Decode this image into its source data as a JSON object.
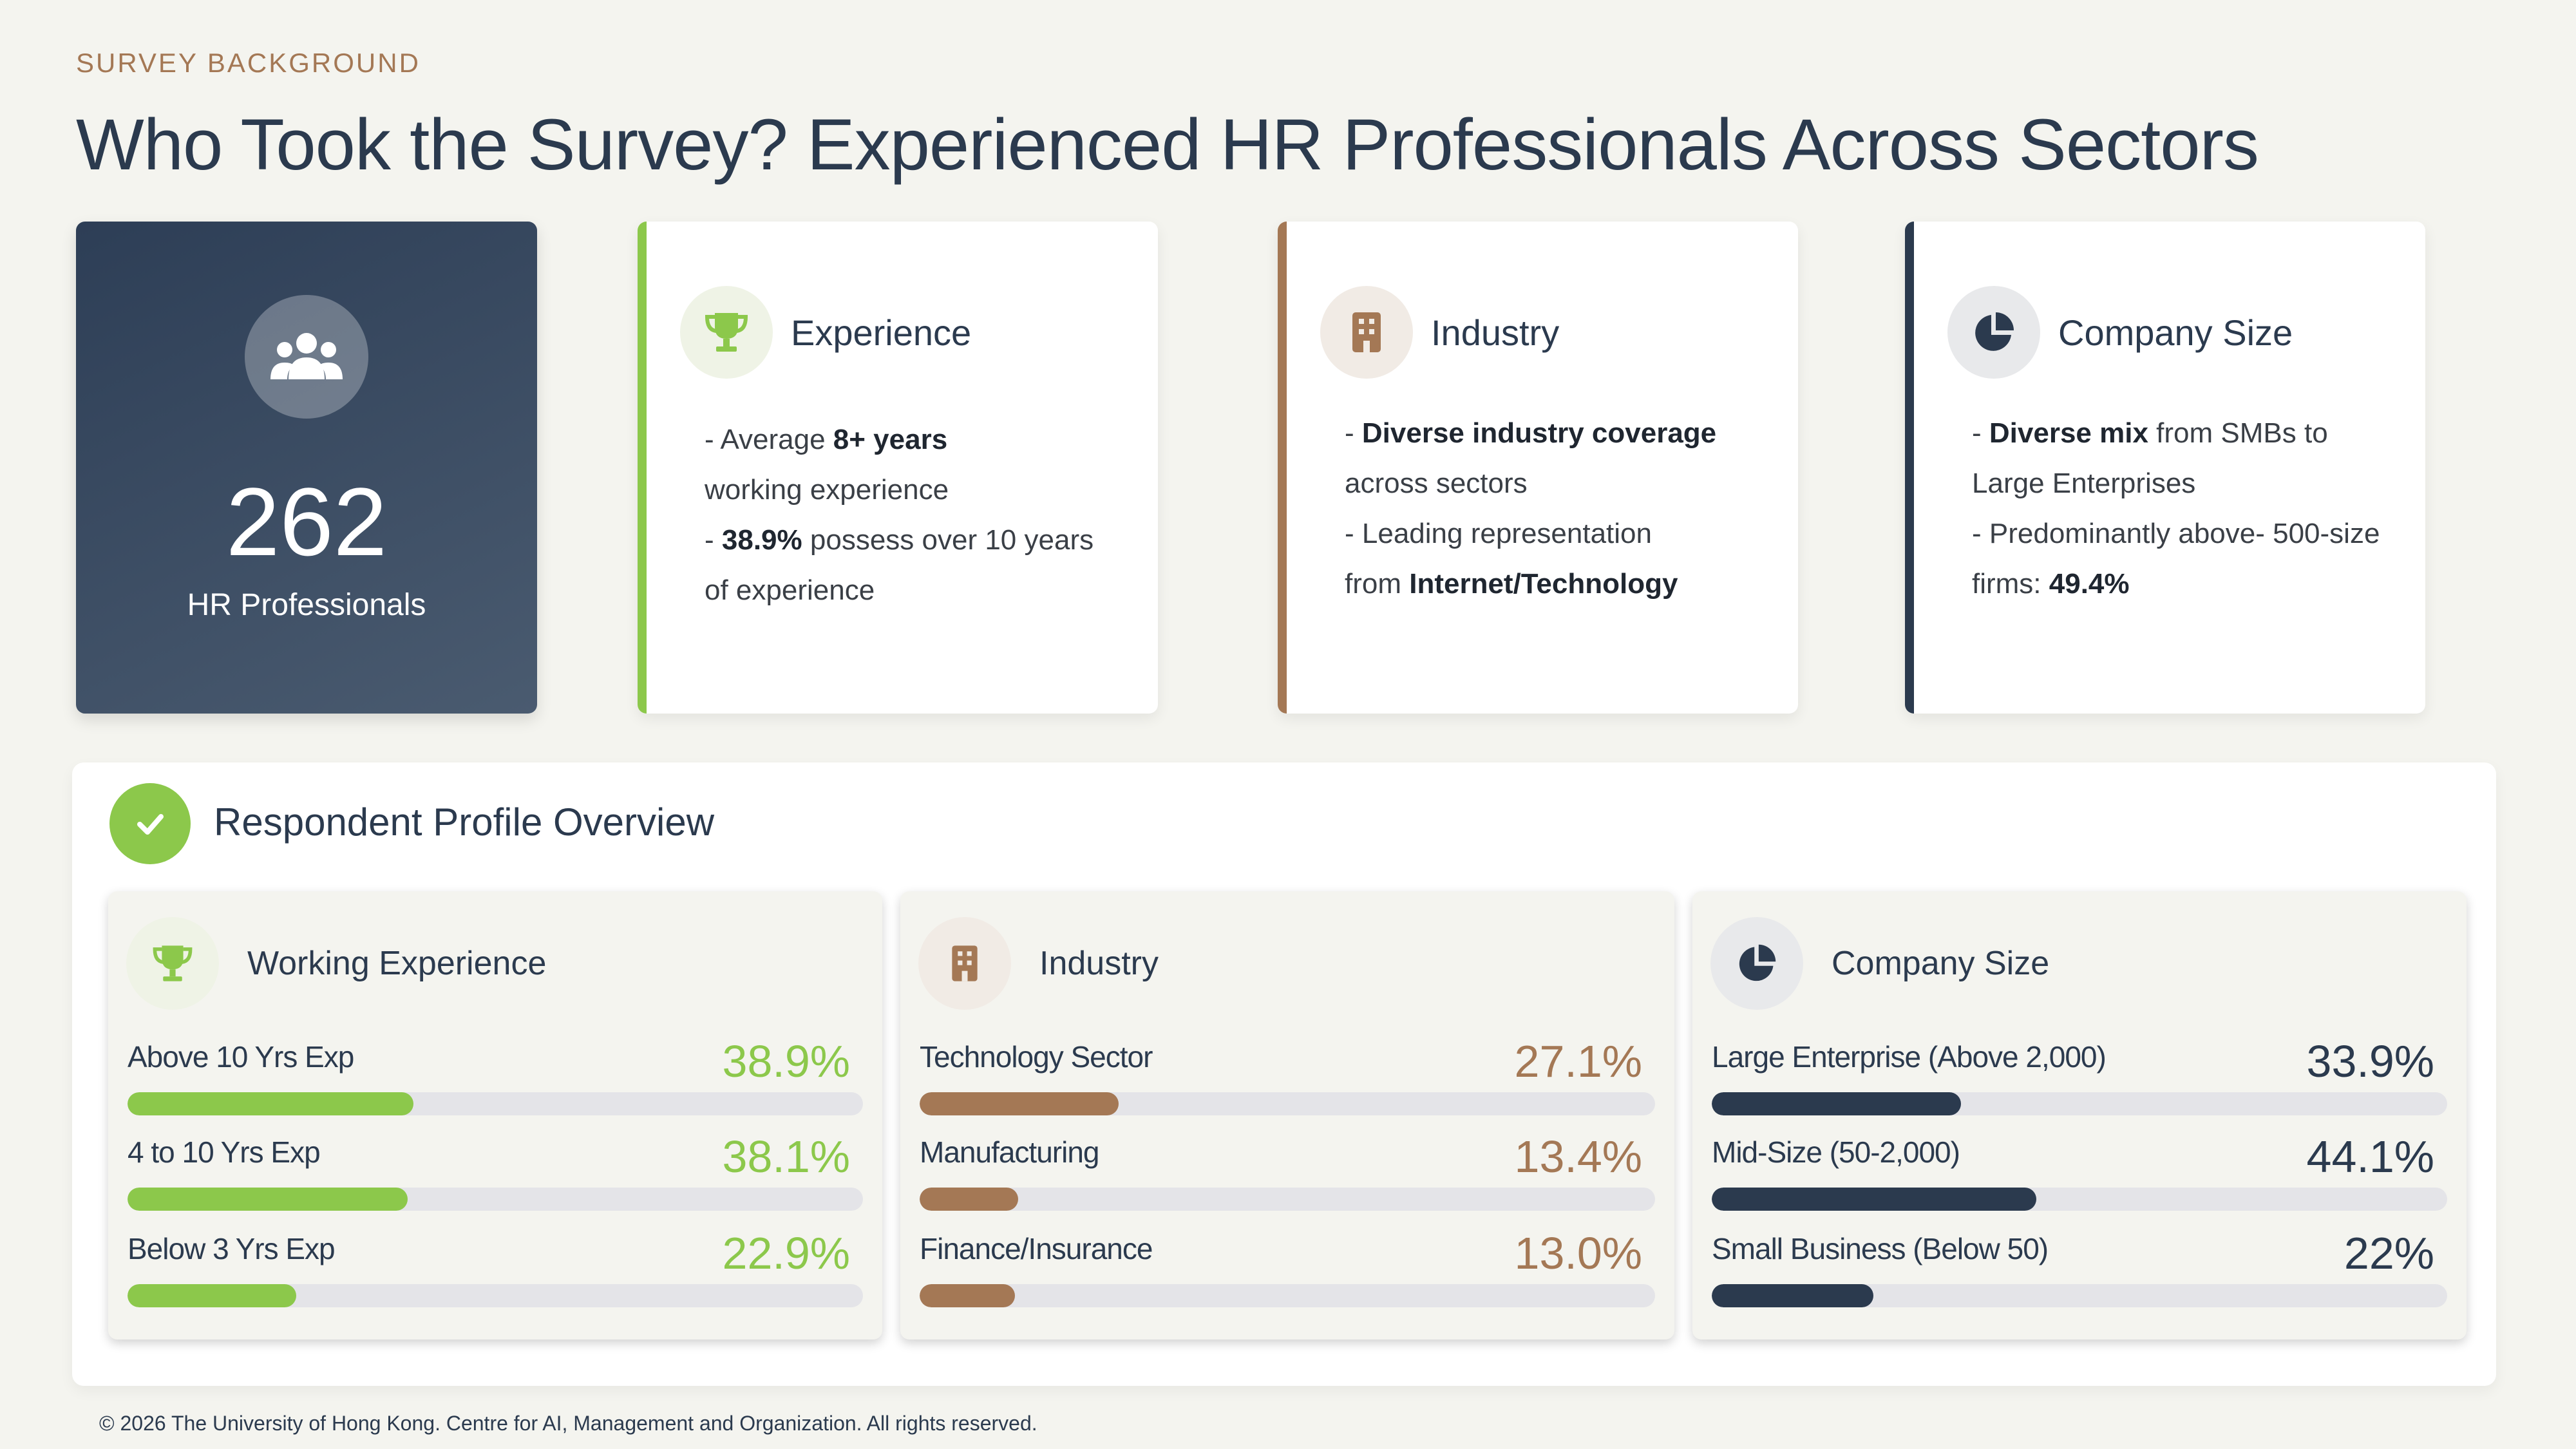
{
  "header": {
    "eyebrow": "SURVEY BACKGROUND",
    "title": "Who Took the Survey? Experienced HR Professionals Across Sectors"
  },
  "stat": {
    "icon": "users-group-icon",
    "number": "262",
    "label": "HR Professionals"
  },
  "cards": {
    "experience": {
      "icon": "trophy-icon",
      "title": "Experience",
      "l1_a": "- Average ",
      "l1_b": "8+ years",
      "l2": "working experience",
      "l3_a": "- ",
      "l3_b": "38.9%",
      "l3_c": " possess over 10 years",
      "l4": "of experience"
    },
    "industry": {
      "icon": "building-icon",
      "title": "Industry",
      "l1_a": "- ",
      "l1_b": "Diverse industry coverage",
      "l2": "across sectors",
      "l3": "- Leading representation",
      "l4_a": "from ",
      "l4_b": "Internet/Technology"
    },
    "company_size": {
      "icon": "pie-chart-icon",
      "title": "Company Size",
      "l1_a": "- ",
      "l1_b": "Diverse mix",
      "l1_c": " from SMBs to",
      "l2": "Large Enterprises",
      "l3": "- Predominantly above- 500-size",
      "l4_a": "firms: ",
      "l4_b": "49.4%"
    }
  },
  "overview": {
    "icon": "check-icon",
    "title": "Respondent Profile Overview",
    "panels": [
      {
        "icon": "trophy-icon",
        "title": "Working Experience",
        "color": "#8cc84b",
        "metrics": [
          {
            "label": "Above 10 Yrs Exp",
            "value": "38.9%",
            "fraction": 0.389
          },
          {
            "label": "4 to 10 Yrs Exp",
            "value": "38.1%",
            "fraction": 0.381
          },
          {
            "label": "Below 3 Yrs Exp",
            "value": "22.9%",
            "fraction": 0.229
          }
        ]
      },
      {
        "icon": "building-icon",
        "title": "Industry",
        "color": "#a47855",
        "metrics": [
          {
            "label": "Technology Sector",
            "value": "27.1%",
            "fraction": 0.271
          },
          {
            "label": "Manufacturing",
            "value": "13.4%",
            "fraction": 0.134
          },
          {
            "label": "Finance/Insurance",
            "value": "13.0%",
            "fraction": 0.13
          }
        ]
      },
      {
        "icon": "pie-chart-icon",
        "title": "Company Size",
        "color": "#2b3a4e",
        "metrics": [
          {
            "label": "Large Enterprise (Above 2,000)",
            "value": "33.9%",
            "fraction": 0.339
          },
          {
            "label": "Mid-Size (50-2,000)",
            "value": "44.1%",
            "fraction": 0.441
          },
          {
            "label": "Small Business (Below 50)",
            "value": "22%",
            "fraction": 0.22
          }
        ]
      }
    ]
  },
  "footer": {
    "text": "© 2026 The University of Hong Kong. Centre for AI, Management and Organization. All rights reserved."
  }
}
